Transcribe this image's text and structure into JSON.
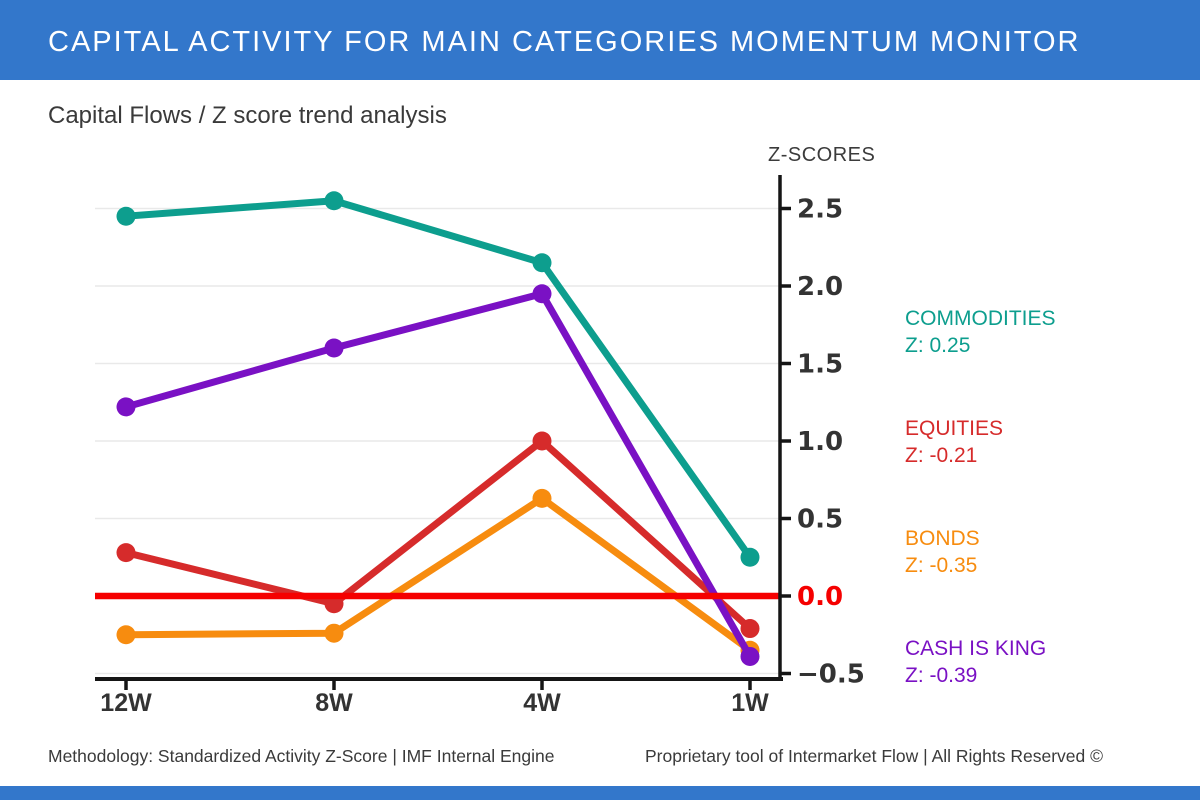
{
  "header": {
    "title": "CAPITAL ACTIVITY FOR MAIN CATEGORIES MOMENTUM MONITOR"
  },
  "subtitle": "Capital Flows / Z score trend analysis",
  "colors": {
    "header_bg": "#3377CB",
    "text_dark": "#3A3A3A",
    "axis": "#151515",
    "grid": "#E9E9E9",
    "zero_line": "#F50000",
    "tick_label": "#333333"
  },
  "chart_data": {
    "type": "line",
    "title": "Capital Flows / Z score trend analysis",
    "axis_label": "Z-SCORES",
    "categories": [
      "12W",
      "8W",
      "4W",
      "1W"
    ],
    "yticks": [
      2.5,
      2.0,
      1.5,
      1.0,
      0.5,
      0.0,
      -0.5
    ],
    "ylim": [
      -0.55,
      2.72
    ],
    "grid": true,
    "legend_position": "right",
    "zero_reference_line": 0.0,
    "series": [
      {
        "name": "COMMODITIES",
        "color": "#0D9E8E",
        "values": [
          2.45,
          2.55,
          2.15,
          0.25
        ],
        "z_label": "Z: 0.25"
      },
      {
        "name": "EQUITIES",
        "color": "#D62B2B",
        "values": [
          0.28,
          -0.05,
          1.0,
          -0.21
        ],
        "z_label": "Z: -0.21"
      },
      {
        "name": "BONDS",
        "color": "#F78C0F",
        "values": [
          -0.25,
          -0.24,
          0.63,
          -0.35
        ],
        "z_label": "Z: -0.35"
      },
      {
        "name": "CASH IS KING",
        "color": "#7A11C4",
        "values": [
          1.22,
          1.6,
          1.95,
          -0.39
        ],
        "z_label": "Z: -0.39"
      }
    ]
  },
  "footer": {
    "left": "Methodology: Standardized Activity Z-Score | IMF Internal Engine",
    "right": "Proprietary tool of Intermarket Flow | All Rights Reserved ©"
  }
}
